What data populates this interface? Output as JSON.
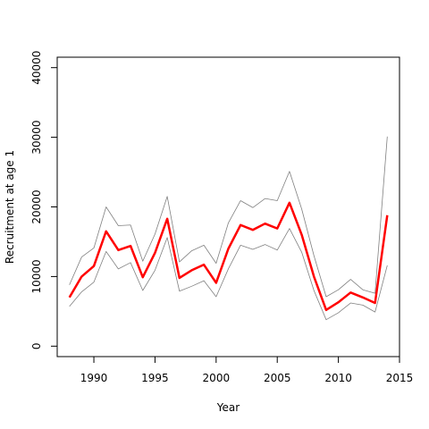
{
  "chart_data": {
    "type": "line",
    "xlabel": "Year",
    "ylabel": "Recruitment at age 1",
    "xlim": [
      1987,
      2015
    ],
    "ylim": [
      -1500,
      41500
    ],
    "x_ticks": [
      1990,
      1995,
      2000,
      2005,
      2010,
      2015
    ],
    "x_tick_labels": [
      "1990",
      "1995",
      "2000",
      "2005",
      "2010",
      "2015"
    ],
    "y_ticks": [
      0,
      10000,
      20000,
      30000,
      40000
    ],
    "y_tick_labels": [
      "0",
      "10000",
      "20000",
      "30000",
      "40000"
    ],
    "grid": false,
    "x": [
      1988,
      1989,
      1990,
      1991,
      1992,
      1993,
      1994,
      1995,
      1996,
      1997,
      1998,
      1999,
      2000,
      2001,
      2002,
      2003,
      2004,
      2005,
      2006,
      2007,
      2008,
      2009,
      2010,
      2011,
      2012,
      2013,
      2014
    ],
    "series": [
      {
        "role": "estimate",
        "color": "#ff0000",
        "values": [
          7000,
          10000,
          11500,
          16500,
          13800,
          14400,
          9900,
          13400,
          18300,
          9800,
          10900,
          11700,
          9100,
          14000,
          17400,
          16700,
          17600,
          16900,
          20600,
          16000,
          10000,
          5200,
          6300,
          7700,
          7000,
          6200,
          18800
        ]
      },
      {
        "role": "upper",
        "color": "#808080",
        "values": [
          8800,
          12800,
          14100,
          20000,
          17300,
          17400,
          12200,
          16100,
          21500,
          12100,
          13700,
          14500,
          11900,
          17700,
          20900,
          19900,
          21200,
          20900,
          25100,
          19700,
          13000,
          7100,
          8100,
          9600,
          8100,
          7600,
          30100
        ]
      },
      {
        "role": "lower",
        "color": "#808080",
        "values": [
          5700,
          7800,
          9200,
          13600,
          11100,
          12000,
          8000,
          10900,
          15600,
          7900,
          8600,
          9400,
          7100,
          11100,
          14500,
          13900,
          14600,
          13800,
          16900,
          13500,
          8000,
          3800,
          4800,
          6200,
          5900,
          4900,
          11600
        ]
      }
    ]
  }
}
